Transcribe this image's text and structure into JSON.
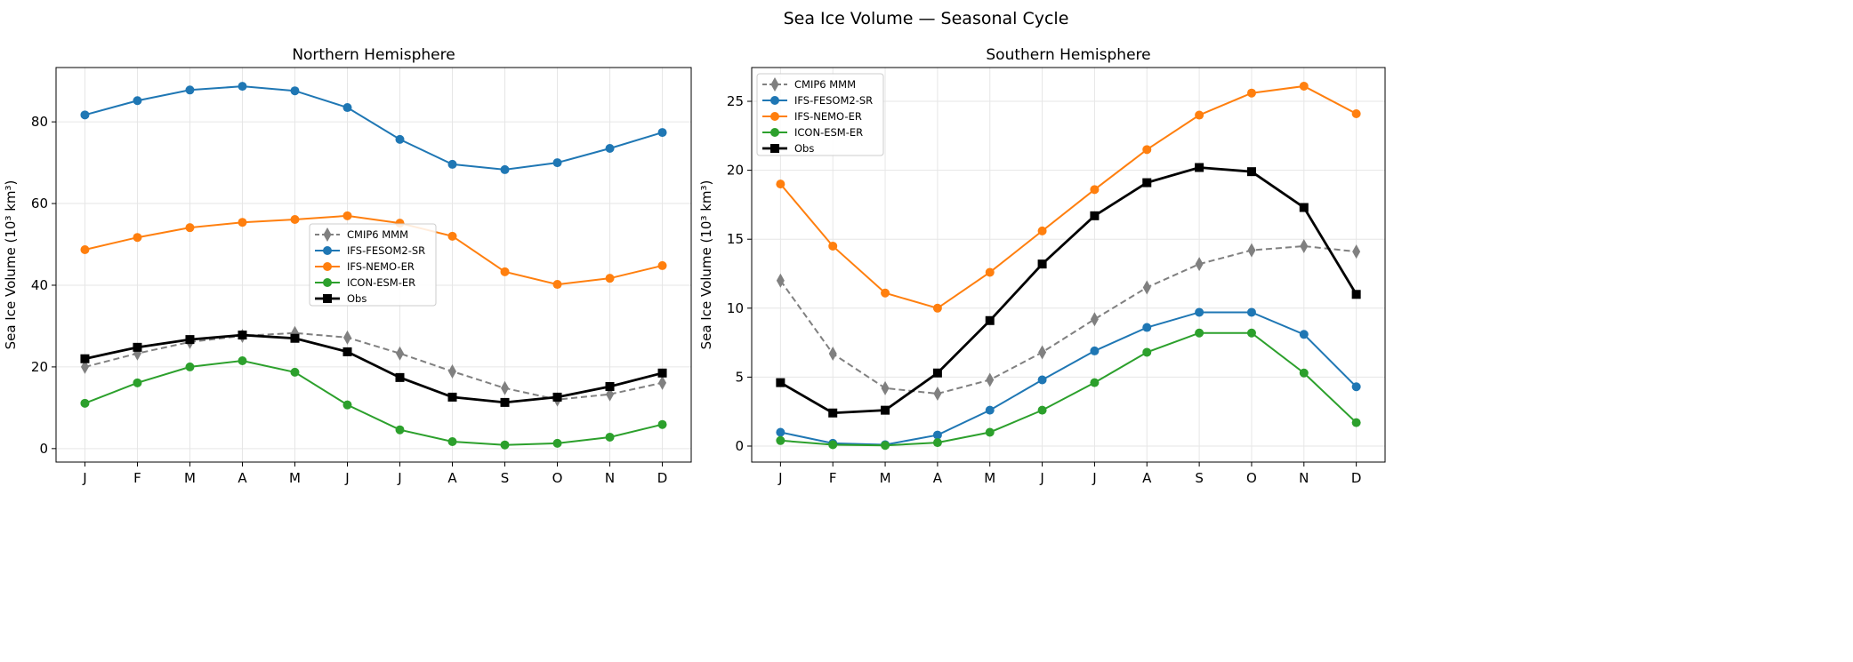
{
  "figure_title": "Sea Ice Volume — Seasonal Cycle",
  "colors": {
    "CMIP6 MMM": "#808080",
    "IFS-FESOM2-SR": "#1f77b4",
    "IFS-NEMO-ER": "#ff7f0e",
    "ICON-ESM-ER": "#2ca02c",
    "Obs": "#000000"
  },
  "chart_data": [
    {
      "type": "line",
      "title": "Northern Hemisphere",
      "xlabel": "",
      "ylabel": "Sea Ice Volume (10³ km³)",
      "categories": [
        "J",
        "F",
        "M",
        "A",
        "M",
        "J",
        "J",
        "A",
        "S",
        "O",
        "N",
        "D"
      ],
      "ylim": [
        -3.3,
        93.3
      ],
      "yticks": [
        0,
        20,
        40,
        60,
        80
      ],
      "grid": true,
      "legend": "center-right",
      "series": [
        {
          "name": "CMIP6 MMM",
          "marker": "thin-diamond",
          "style": "dashed",
          "values": [
            20.0,
            23.3,
            26.1,
            27.6,
            28.3,
            27.2,
            23.3,
            18.9,
            14.8,
            12.0,
            13.3,
            16.1
          ]
        },
        {
          "name": "IFS-FESOM2-SR",
          "marker": "circle",
          "style": "solid",
          "values": [
            81.7,
            85.2,
            87.8,
            88.7,
            87.6,
            83.5,
            75.7,
            69.6,
            68.3,
            70.0,
            73.5,
            77.4
          ]
        },
        {
          "name": "IFS-NEMO-ER",
          "marker": "circle",
          "style": "solid",
          "values": [
            48.7,
            51.7,
            54.1,
            55.4,
            56.1,
            57.0,
            55.2,
            52.0,
            43.3,
            40.2,
            41.7,
            44.8
          ]
        },
        {
          "name": "ICON-ESM-ER",
          "marker": "circle",
          "style": "solid",
          "values": [
            11.1,
            16.1,
            20.0,
            21.5,
            18.7,
            10.7,
            4.6,
            1.7,
            0.9,
            1.3,
            2.8,
            5.9
          ]
        },
        {
          "name": "Obs",
          "marker": "square",
          "style": "solid-thick",
          "values": [
            22.0,
            24.8,
            26.7,
            27.8,
            27.0,
            23.7,
            17.4,
            12.6,
            11.3,
            12.6,
            15.2,
            18.5
          ]
        }
      ]
    },
    {
      "type": "line",
      "title": "Southern Hemisphere",
      "xlabel": "",
      "ylabel": "Sea Ice Volume (10³ km³)",
      "categories": [
        "J",
        "F",
        "M",
        "A",
        "M",
        "J",
        "J",
        "A",
        "S",
        "O",
        "N",
        "D"
      ],
      "ylim": [
        -1.16,
        27.45
      ],
      "yticks": [
        0,
        5,
        10,
        15,
        20,
        25
      ],
      "grid": true,
      "legend": "upper-left",
      "series": [
        {
          "name": "CMIP6 MMM",
          "marker": "thin-diamond",
          "style": "dashed",
          "values": [
            12.0,
            6.7,
            4.2,
            3.8,
            4.8,
            6.8,
            9.2,
            11.5,
            13.2,
            14.2,
            14.5,
            14.1
          ]
        },
        {
          "name": "IFS-FESOM2-SR",
          "marker": "circle",
          "style": "solid",
          "values": [
            1.0,
            0.2,
            0.1,
            0.8,
            2.6,
            4.8,
            6.9,
            8.6,
            9.7,
            9.7,
            8.1,
            4.3
          ]
        },
        {
          "name": "IFS-NEMO-ER",
          "marker": "circle",
          "style": "solid",
          "values": [
            19.0,
            14.5,
            11.1,
            10.0,
            12.6,
            15.6,
            18.6,
            21.5,
            24.0,
            25.6,
            26.1,
            24.1
          ]
        },
        {
          "name": "ICON-ESM-ER",
          "marker": "circle",
          "style": "solid",
          "values": [
            0.4,
            0.1,
            0.05,
            0.25,
            1.0,
            2.6,
            4.6,
            6.8,
            8.2,
            8.2,
            5.3,
            1.7
          ]
        },
        {
          "name": "Obs",
          "marker": "square",
          "style": "solid-thick",
          "values": [
            4.6,
            2.4,
            2.6,
            5.3,
            9.1,
            13.2,
            16.7,
            19.1,
            20.2,
            19.9,
            17.3,
            11.0
          ]
        }
      ]
    }
  ]
}
